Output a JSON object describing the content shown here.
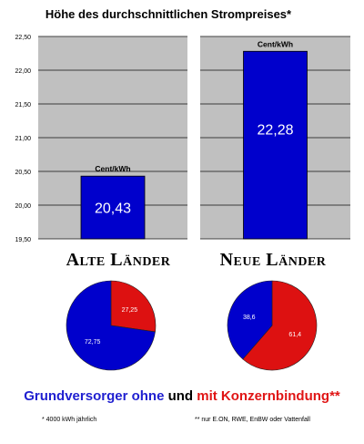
{
  "title": "Höhe des durchschnittlichen Strompreises*",
  "colors": {
    "blue": "#0000cc",
    "red": "#dd1111",
    "panel": "#c0c0c0"
  },
  "chart_data": [
    {
      "type": "bar",
      "categories": [
        "Alte Länder",
        "Neue Länder"
      ],
      "values": [
        20.43,
        22.28
      ],
      "value_labels": [
        "20,43",
        "22,28"
      ],
      "unit_labels": [
        "Cent/kWh",
        "Cent/kWh"
      ],
      "ylim": [
        19.5,
        22.5
      ],
      "yticks": [
        "19,50",
        "20,00",
        "20,50",
        "21,00",
        "21,50",
        "22,00",
        "22,50"
      ],
      "grid": true
    },
    {
      "type": "pie",
      "title": "Alte Länder",
      "slices": [
        {
          "label": "Grundversorger ohne",
          "value": 72.75,
          "text": "72,75",
          "color": "#0000cc"
        },
        {
          "label": "mit Konzernbindung",
          "value": 27.25,
          "text": "27,25",
          "color": "#dd1111"
        }
      ]
    },
    {
      "type": "pie",
      "title": "Neue Länder",
      "slices": [
        {
          "label": "Grundversorger ohne",
          "value": 38.6,
          "text": "38,6",
          "color": "#0000cc"
        },
        {
          "label": "mit Konzernbindung",
          "value": 61.4,
          "text": "61,4",
          "color": "#dd1111"
        }
      ]
    }
  ],
  "legend": {
    "part1": "Grundversorger ohne",
    "part2": "und",
    "part3": "mit Konzernbindung**"
  },
  "footnotes": {
    "left": "* 4000 kWh jährlich",
    "right": "** nur E.ON, RWE, EnBW oder Vattenfall"
  }
}
